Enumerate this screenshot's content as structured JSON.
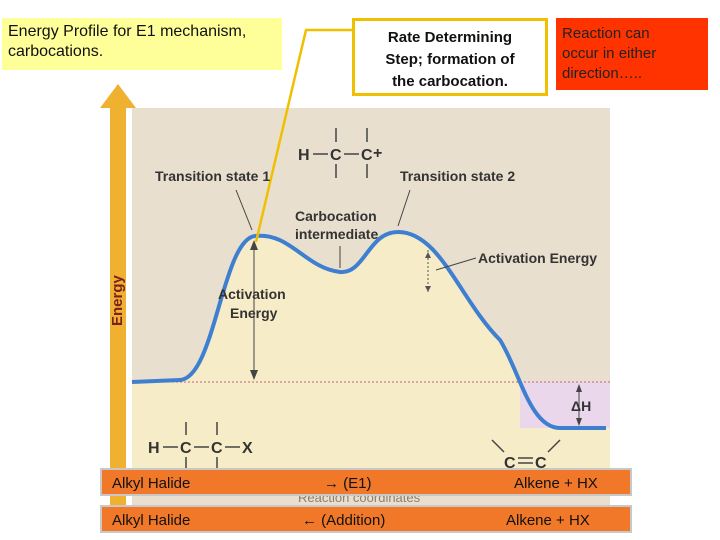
{
  "title_box": {
    "text": "Energy Profile for E1 mechanism, carbocations."
  },
  "rds_box": {
    "line1": "Rate Determining",
    "line2": "Step; formation of",
    "line3": "the carbocation."
  },
  "reversible_box": {
    "line1": "Reaction can",
    "line2": "occur in either",
    "line3": "direction….."
  },
  "diagram": {
    "y_axis_label": "Energy",
    "transition_state_1": "Transition state 1",
    "transition_state_2": "Transition state 2",
    "carbocation_line1": "Carbocation",
    "carbocation_line2": "intermediate",
    "activation_energy_1_line1": "Activation",
    "activation_energy_1_line2": "Energy",
    "activation_energy_2": "Activation Energy",
    "delta_h": "ΔH",
    "reaction_coordinate_partial": "Reaction coordinates",
    "carbocation_struct": {
      "h": "H",
      "c1": "C",
      "c2": "C",
      "charge": "+"
    },
    "reactant_struct": {
      "h": "H",
      "c1": "C",
      "c2": "C",
      "x": "X"
    },
    "product_struct": {
      "c1": "C",
      "c2": "C"
    },
    "colors": {
      "panel": "#e8dfcf",
      "fill_low": "#f7ecc8",
      "fill_dh": "#ead7ec",
      "curve": "#3f7fd0",
      "axis_arrow": "#f0b030"
    }
  },
  "bars": [
    {
      "left": "Alkyl  Halide",
      "middle": "→ (E1)",
      "right": "Alkene + HX"
    },
    {
      "left": "Alkyl Halide",
      "middle": "←  (Addition)",
      "right": "Alkene + HX"
    }
  ]
}
